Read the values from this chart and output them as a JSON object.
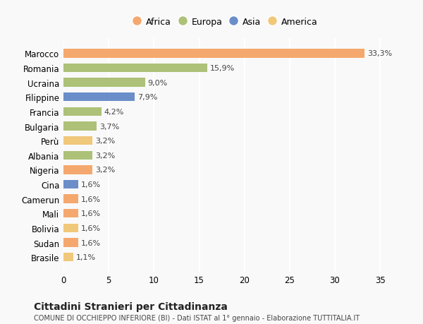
{
  "countries": [
    "Brasile",
    "Sudan",
    "Bolivia",
    "Mali",
    "Camerun",
    "Cina",
    "Nigeria",
    "Albania",
    "Perù",
    "Bulgaria",
    "Francia",
    "Filippine",
    "Ucraina",
    "Romania",
    "Marocco"
  ],
  "values": [
    1.1,
    1.6,
    1.6,
    1.6,
    1.6,
    1.6,
    3.2,
    3.2,
    3.2,
    3.7,
    4.2,
    7.9,
    9.0,
    15.9,
    33.3
  ],
  "labels": [
    "1,1%",
    "1,6%",
    "1,6%",
    "1,6%",
    "1,6%",
    "1,6%",
    "3,2%",
    "3,2%",
    "3,2%",
    "3,7%",
    "4,2%",
    "7,9%",
    "9,0%",
    "15,9%",
    "33,3%"
  ],
  "colors": [
    "#f0c87a",
    "#f5a86e",
    "#f0c87a",
    "#f5a86e",
    "#f5a86e",
    "#6b8ec9",
    "#f5a86e",
    "#adc178",
    "#f0c87a",
    "#adc178",
    "#adc178",
    "#6b8ec9",
    "#adc178",
    "#adc178",
    "#f5a86e"
  ],
  "legend": [
    {
      "label": "Africa",
      "color": "#f5a86e"
    },
    {
      "label": "Europa",
      "color": "#adc178"
    },
    {
      "label": "Asia",
      "color": "#6b8ec9"
    },
    {
      "label": "America",
      "color": "#f0c87a"
    }
  ],
  "title": "Cittadini Stranieri per Cittadinanza",
  "subtitle": "COMUNE DI OCCHIEPPO INFERIORE (BI) - Dati ISTAT al 1° gennaio - Elaborazione TUTTITALIA.IT",
  "xlim": [
    0,
    36
  ],
  "xticks": [
    0,
    5,
    10,
    15,
    20,
    25,
    30,
    35
  ],
  "bg_color": "#f9f9f9",
  "grid_color": "#ffffff",
  "bar_height": 0.6
}
